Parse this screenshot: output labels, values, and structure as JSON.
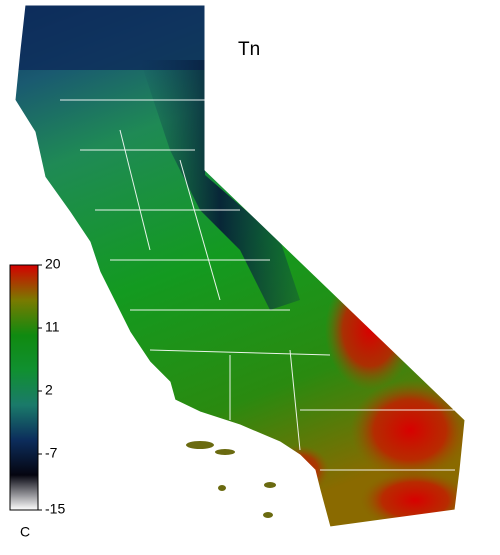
{
  "map": {
    "title": "Tn",
    "colorbar": {
      "unit": "C",
      "range": [
        -15,
        20
      ],
      "ticks": [
        20,
        11,
        2,
        -7,
        -15
      ],
      "colors": [
        "#d40000",
        "#7a7a00",
        "#108a10",
        "#109030",
        "#1a7a6a",
        "#0c2d5c",
        "#050510",
        "#ffffff"
      ]
    }
  }
}
